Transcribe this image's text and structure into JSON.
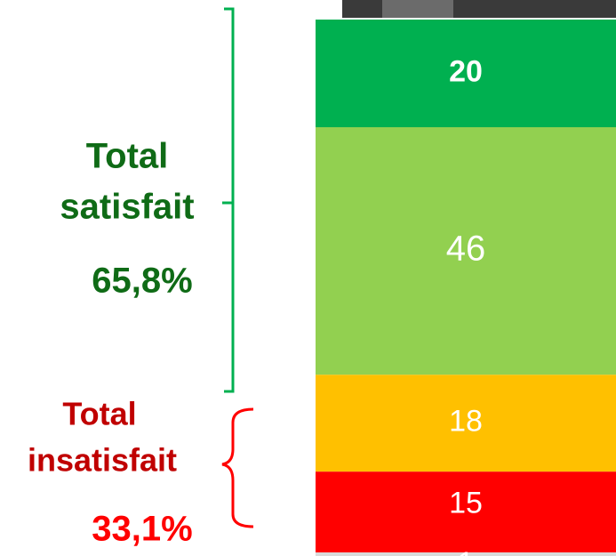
{
  "chart_data": {
    "type": "stacked-bar",
    "values": [
      20,
      46,
      18,
      15,
      1
    ],
    "colors": [
      "#00b050",
      "#92d050",
      "#ffc000",
      "#ff0000",
      "#d9d9d9"
    ],
    "label_color": "#ffffff",
    "annotations": [
      {
        "lines": [
          "Total",
          "satisfait"
        ],
        "total": "65,8%",
        "color": "#0f6b16",
        "total_color": "#0f6b16"
      },
      {
        "lines": [
          "Total",
          "insatisfait"
        ],
        "total": "33,1%",
        "color": "#c00000",
        "total_color": "#ff0000"
      }
    ]
  }
}
